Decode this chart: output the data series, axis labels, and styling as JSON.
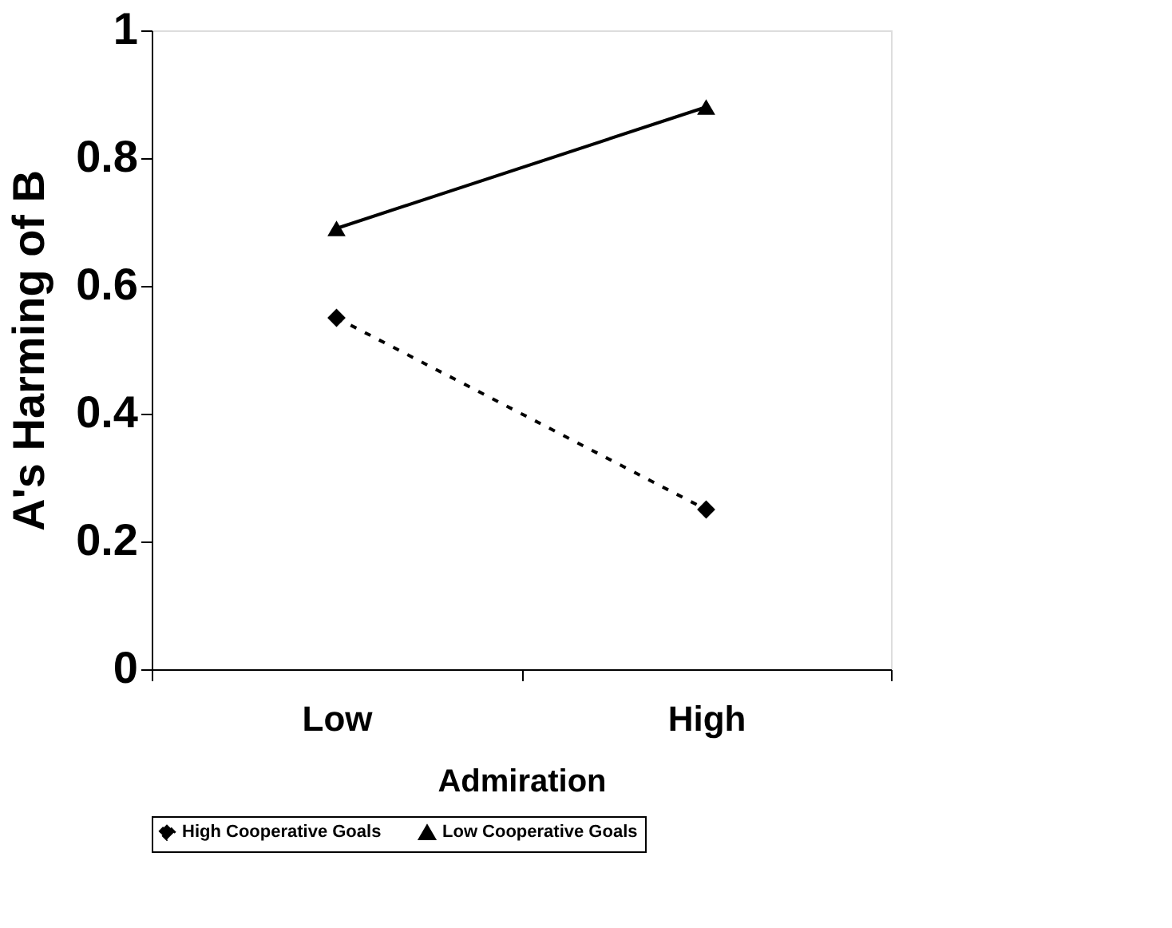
{
  "chart_data": {
    "type": "line",
    "xlabel": "Admiration",
    "ylabel": "A's Harming of B",
    "categories": [
      "Low",
      "High"
    ],
    "series": [
      {
        "name": "High Cooperative Goals",
        "color": "#000000",
        "values": [
          0.55,
          0.25
        ],
        "marker": "diamond",
        "line_style": "dashed"
      },
      {
        "name": "Low Cooperative Goals",
        "color": "#000000",
        "values": [
          0.69,
          0.88
        ],
        "marker": "triangle",
        "line_style": "solid"
      }
    ],
    "ylim": [
      0,
      1
    ],
    "yticks": [
      0,
      0.2,
      0.4,
      0.6,
      0.8,
      1
    ],
    "grid": false,
    "legend": "bottom"
  }
}
